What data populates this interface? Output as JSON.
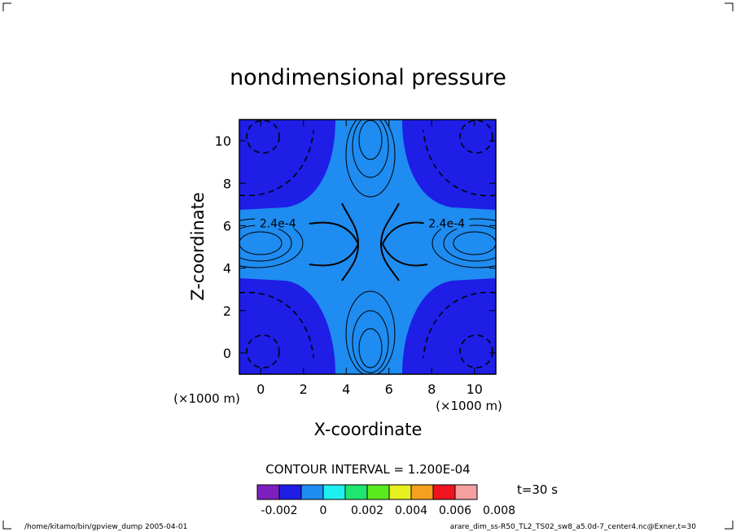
{
  "chart_data": {
    "type": "heatmap",
    "title": "nondimensional pressure",
    "xlabel": "X-coordinate",
    "ylabel": "Z-coordinate",
    "x_unit": "(×1000 m)",
    "z_unit": "(×1000 m)",
    "xlim": [
      -1,
      11
    ],
    "ylim": [
      -1,
      11
    ],
    "xticks": [
      0,
      2,
      4,
      6,
      8,
      10
    ],
    "yticks": [
      0,
      2,
      4,
      6,
      8,
      10
    ],
    "contour_interval_text": "CONTOUR INTERVAL = 1.200E-04",
    "contour_labels": [
      "2.4e-4",
      "2.4e-4"
    ],
    "time_label": "t=30 s",
    "colorbar": {
      "colors": [
        "#7f1fbf",
        "#1e1ee6",
        "#1e8cf0",
        "#1ef0f0",
        "#1ee66e",
        "#5aeb1e",
        "#e6f01e",
        "#f5a01e",
        "#f0141e",
        "#f5a0a0"
      ],
      "tick_labels": [
        "-0.002",
        "0",
        "0.002",
        "0.004",
        "0.006",
        "0.008"
      ]
    },
    "field_levels": {
      "negative_fill": "#1e1ee6",
      "positive_fill": "#1e8cf0"
    }
  },
  "footer": {
    "left": "/home/kitamo/bin/gpview_dump  2005-04-01",
    "right": "arare_dim_ss-R50_TL2_TS02_sw8_a5.0d-7_center4.nc@Exner,t=30"
  }
}
